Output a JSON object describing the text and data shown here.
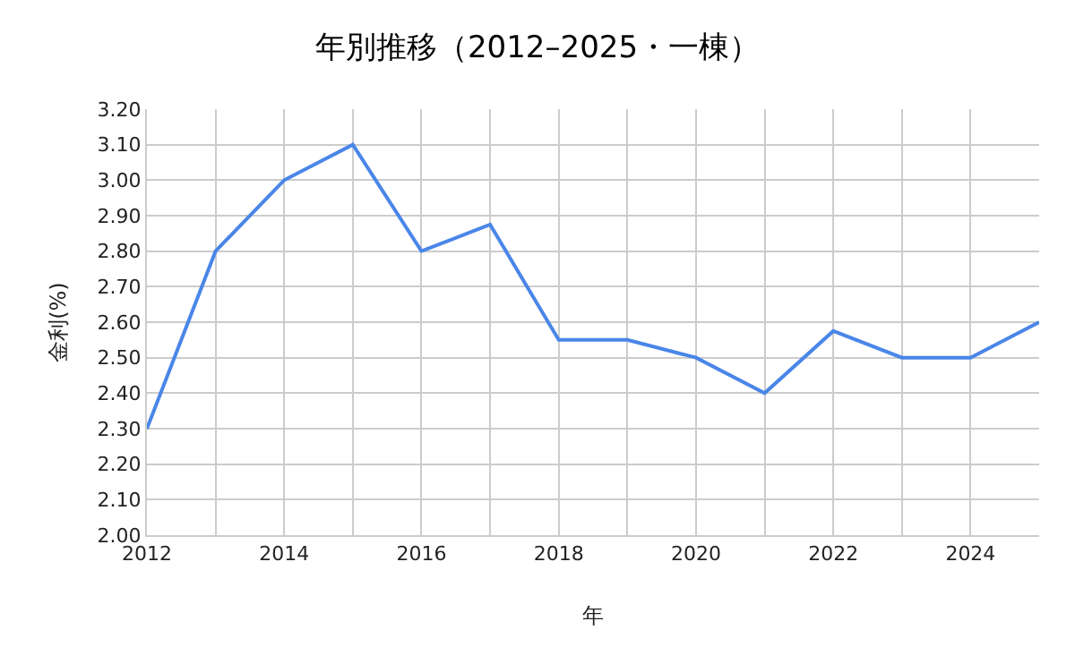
{
  "chart_data": {
    "type": "line",
    "title": "年別推移（2012–2025・一棟）",
    "xlabel": "年",
    "ylabel": "金利(%)",
    "x": [
      2012,
      2013,
      2014,
      2015,
      2016,
      2017,
      2018,
      2019,
      2020,
      2021,
      2022,
      2023,
      2024,
      2025
    ],
    "series": [
      {
        "color": "#4a86e8",
        "values": [
          2.3,
          2.8,
          3.0,
          3.1,
          2.8,
          2.875,
          2.55,
          2.55,
          2.5,
          2.4,
          2.575,
          2.5,
          2.5,
          2.6
        ]
      }
    ],
    "xlim": [
      2012,
      2025
    ],
    "xticks": [
      2012,
      {
        "value": 2013,
        "label": null
      },
      2014,
      {
        "value": 2015,
        "label": null
      },
      2016,
      {
        "value": 2017,
        "label": null
      },
      2018,
      {
        "value": 2019,
        "label": null
      },
      2020,
      {
        "value": 2021,
        "label": null
      },
      2022,
      {
        "value": 2023,
        "label": null
      },
      2024
    ],
    "ylim": [
      2.0,
      3.2
    ],
    "yticks": [
      {
        "value": 2.0,
        "label": "2.00"
      },
      {
        "value": 2.1,
        "label": "2.10"
      },
      {
        "value": 2.2,
        "label": "2.20"
      },
      {
        "value": 2.3,
        "label": "2.30"
      },
      {
        "value": 2.4,
        "label": "2.40"
      },
      {
        "value": 2.5,
        "label": "2.50"
      },
      {
        "value": 2.6,
        "label": "2.60"
      },
      {
        "value": 2.7,
        "label": "2.70"
      },
      {
        "value": 2.8,
        "label": "2.80"
      },
      {
        "value": 2.9,
        "label": "2.90"
      },
      {
        "value": 3.0,
        "label": "3.00"
      },
      {
        "value": 3.1,
        "label": "3.10"
      },
      {
        "value": 3.2,
        "label": "3.20"
      }
    ],
    "grid": true,
    "marker": "none",
    "line_style": "solid"
  }
}
